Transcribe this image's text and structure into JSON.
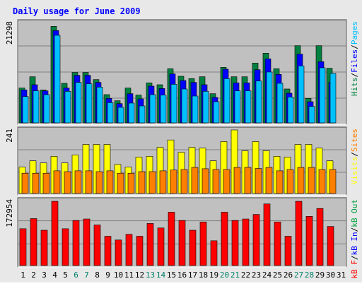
{
  "colors": {
    "frame": "#e8e8e8",
    "plot_bg": "#c0c0c0",
    "title": "#0000ff",
    "hits": "#008040",
    "files": "#0000ff",
    "pages": "#00c0ff",
    "visits": "#ffff00",
    "sites": "#ff8000",
    "kb_in": "#0000ff",
    "kb_out": "#00a040",
    "kb_f": "#ff0000",
    "day_weekday": "#000000",
    "day_weekend": "#00806a"
  },
  "chart_data": {
    "title": "Daily usage for June 2009",
    "type": "bar",
    "days": [
      "1",
      "2",
      "3",
      "4",
      "5",
      "6",
      "7",
      "8",
      "9",
      "10",
      "11",
      "12",
      "13",
      "14",
      "15",
      "16",
      "17",
      "18",
      "19",
      "20",
      "21",
      "22",
      "23",
      "24",
      "25",
      "26",
      "27",
      "28",
      "29",
      "30",
      "31"
    ],
    "weekend_days": [
      "6",
      "7",
      "13",
      "14",
      "20",
      "21",
      "27",
      "28"
    ],
    "panels": [
      {
        "id": "hits",
        "max_label": "21298",
        "ymax": 21298,
        "legend": [
          {
            "text": "Hits",
            "color": "#008040"
          },
          {
            "text": "/",
            "color": "#000000"
          },
          {
            "text": "Files",
            "color": "#0000ff"
          },
          {
            "text": "/",
            "color": "#000000"
          },
          {
            "text": "Pages",
            "color": "#00c0ff"
          }
        ],
        "series": [
          {
            "name": "Hits",
            "color": "#008040",
            "values": [
              7400,
              9800,
              7000,
              20500,
              8400,
              10700,
              10700,
              9200,
              6000,
              4700,
              7400,
              5900,
              8500,
              8100,
              11500,
              9900,
              9400,
              9800,
              6200,
              11800,
              9800,
              9800,
              12700,
              14800,
              11500,
              7200,
              16400,
              5200,
              16400,
              11600,
              0
            ]
          },
          {
            "name": "Files",
            "color": "#0000ff",
            "values": [
              7000,
              8100,
              6800,
              19600,
              7400,
              10100,
              10100,
              8600,
              5200,
              4100,
              6200,
              5100,
              7800,
              7300,
              10400,
              9000,
              8600,
              8100,
              5400,
              11400,
              8500,
              8500,
              11300,
              13600,
              10300,
              6300,
              14600,
              4500,
              13000,
              8600,
              0
            ]
          },
          {
            "name": "Pages",
            "color": "#00c0ff",
            "values": [
              5600,
              6800,
              6000,
              18600,
              6700,
              8600,
              8300,
              7600,
              4300,
              3300,
              4200,
              3600,
              6000,
              5900,
              8200,
              7200,
              5700,
              6700,
              4500,
              9400,
              6800,
              6800,
              8900,
              10800,
              8400,
              5500,
              12100,
              3500,
              11700,
              10500,
              0
            ]
          }
        ]
      },
      {
        "id": "visits",
        "max_label": "241",
        "ymax": 241,
        "legend": [
          {
            "text": "Visits",
            "color": "#ffff00"
          },
          {
            "text": "/",
            "color": "#000000"
          },
          {
            "text": "Sites",
            "color": "#ff8000"
          }
        ],
        "series": [
          {
            "name": "Visits",
            "color": "#ffff00",
            "values": [
              100,
              124,
              116,
              141,
              116,
              146,
              186,
              186,
              186,
              110,
              100,
              138,
              141,
              175,
              203,
              156,
              175,
              172,
              124,
              197,
              241,
              162,
              197,
              162,
              141,
              138,
              186,
              186,
              172,
              124,
              0
            ]
          },
          {
            "name": "Sites",
            "color": "#ff8000",
            "values": [
              77,
              77,
              77,
              86,
              83,
              86,
              86,
              83,
              86,
              77,
              77,
              83,
              83,
              86,
              89,
              91,
              99,
              94,
              91,
              91,
              99,
              99,
              95,
              99,
              86,
              91,
              99,
              99,
              91,
              91,
              0
            ]
          }
        ]
      },
      {
        "id": "kb",
        "max_label": "172954",
        "ymax": 172954,
        "legend": [
          {
            "text": "kB F",
            "color": "#ff0000"
          },
          {
            "text": "/",
            "color": "#000000"
          },
          {
            "text": "kB In",
            "color": "#0000ff"
          },
          {
            "text": "/",
            "color": "#000000"
          },
          {
            "text": "kB Out",
            "color": "#00a040"
          }
        ],
        "series": [
          {
            "name": "kB F",
            "color": "#ff0000",
            "values": [
              98000,
              125000,
              94000,
              171000,
              98000,
              120000,
              124000,
              108000,
              78000,
              68000,
              83000,
              78000,
              112000,
              100000,
              142000,
              120000,
              94000,
              116000,
              66000,
              142000,
              120000,
              124000,
              136000,
              164000,
              116000,
              78000,
              171000,
              131000,
              152000,
              104000,
              0
            ]
          }
        ]
      }
    ]
  }
}
